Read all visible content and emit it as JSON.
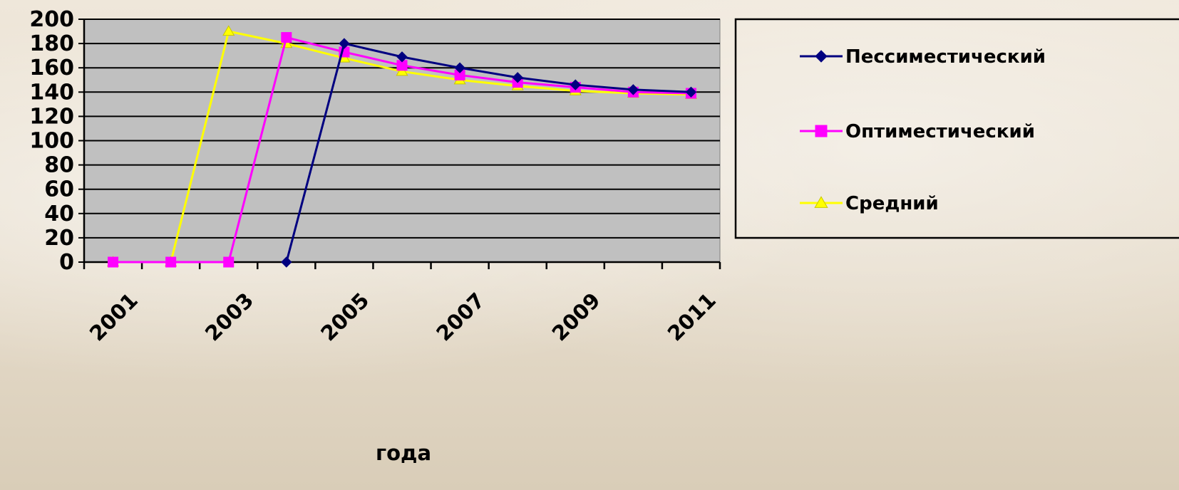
{
  "chart_data": {
    "type": "line",
    "title": "",
    "xlabel": "года",
    "ylabel": "",
    "ylim": [
      0,
      200
    ],
    "y_ticks": [
      "0",
      "20",
      "40",
      "60",
      "80",
      "100",
      "120",
      "140",
      "160",
      "180",
      "200"
    ],
    "categories": [
      "2001",
      "2002",
      "2003",
      "2004",
      "2005",
      "2006",
      "2007",
      "2008",
      "2009",
      "2010",
      "2011"
    ],
    "x_tick_labels": [
      "2001",
      "2003",
      "2005",
      "2007",
      "2009",
      "2011"
    ],
    "grid": true,
    "legend_position": "right",
    "series": [
      {
        "name": "Пессиместический",
        "color": "#000080",
        "marker": "diamond",
        "values": [
          null,
          null,
          null,
          0,
          180,
          169,
          160,
          152,
          146,
          142,
          140
        ]
      },
      {
        "name": "Оптиместический",
        "color": "#ff00ff",
        "marker": "square",
        "values": [
          0,
          0,
          0,
          185,
          173,
          162,
          154,
          148,
          144,
          140,
          139
        ]
      },
      {
        "name": "Средний",
        "color": "#ffff00",
        "marker": "triangle",
        "values": [
          0,
          0,
          190,
          180,
          168,
          157,
          150,
          145,
          141,
          139,
          138
        ]
      }
    ]
  }
}
